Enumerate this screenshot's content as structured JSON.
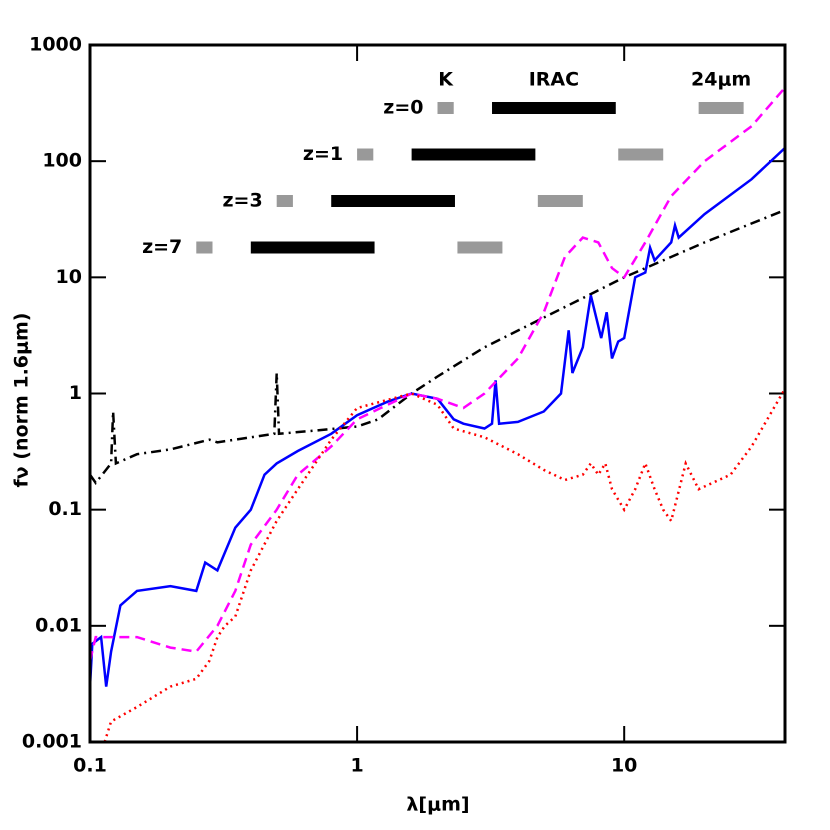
{
  "chart_data": {
    "type": "line",
    "xlabel": "λ[μm]",
    "ylabel": "fν (norm 1.6μm)",
    "xscale": "log",
    "yscale": "log",
    "xlim": [
      0.1,
      40
    ],
    "ylim": [
      0.001,
      1000
    ],
    "xticks": [
      0.1,
      1,
      10
    ],
    "yticks": [
      0.001,
      0.01,
      0.1,
      1,
      10,
      100,
      1000
    ],
    "series": [
      {
        "color": "#000000",
        "linestyle": "dashdot",
        "x": [
          0.1,
          0.105,
          0.12,
          0.122,
          0.125,
          0.15,
          0.2,
          0.28,
          0.3,
          0.4,
          0.49,
          0.5,
          0.51,
          0.7,
          1,
          1.2,
          1.6,
          2,
          3,
          5,
          10,
          20,
          40
        ],
        "values": [
          0.2,
          0.17,
          0.25,
          0.7,
          0.25,
          0.3,
          0.33,
          0.4,
          0.38,
          0.42,
          0.45,
          1.5,
          0.45,
          0.48,
          0.52,
          0.6,
          1.0,
          1.4,
          2.5,
          4.5,
          10,
          20,
          38
        ]
      },
      {
        "color": "#0000ff",
        "linestyle": "solid",
        "x": [
          0.1,
          0.102,
          0.11,
          0.115,
          0.12,
          0.13,
          0.15,
          0.2,
          0.25,
          0.27,
          0.3,
          0.35,
          0.4,
          0.45,
          0.5,
          0.6,
          0.8,
          1,
          1.3,
          1.6,
          2,
          2.3,
          2.5,
          3,
          3.2,
          3.3,
          3.4,
          4,
          5,
          5.8,
          6.2,
          6.4,
          7,
          7.5,
          8.2,
          8.6,
          9,
          9.5,
          10,
          11,
          12,
          12.5,
          13,
          15,
          15.5,
          16,
          20,
          30,
          40
        ],
        "values": [
          0.003,
          0.007,
          0.008,
          0.003,
          0.006,
          0.015,
          0.02,
          0.022,
          0.02,
          0.035,
          0.03,
          0.07,
          0.1,
          0.2,
          0.25,
          0.32,
          0.45,
          0.65,
          0.85,
          1.0,
          0.9,
          0.6,
          0.55,
          0.5,
          0.55,
          1.3,
          0.55,
          0.57,
          0.7,
          1.0,
          3.5,
          1.5,
          2.5,
          7,
          3,
          5,
          2,
          2.8,
          3,
          10,
          11,
          18,
          14,
          20,
          28,
          22,
          35,
          70,
          130
        ]
      },
      {
        "color": "#ff00ff",
        "linestyle": "dashed",
        "x": [
          0.1,
          0.105,
          0.12,
          0.15,
          0.2,
          0.25,
          0.3,
          0.35,
          0.4,
          0.5,
          0.6,
          0.8,
          1,
          1.3,
          1.6,
          2,
          2.5,
          3,
          4,
          5,
          6,
          7,
          8,
          9,
          10,
          12,
          15,
          20,
          30,
          40
        ],
        "values": [
          0.005,
          0.008,
          0.008,
          0.008,
          0.0065,
          0.006,
          0.01,
          0.02,
          0.05,
          0.1,
          0.2,
          0.35,
          0.6,
          0.8,
          1.0,
          0.9,
          0.75,
          1,
          2,
          5,
          15,
          22,
          20,
          12,
          10,
          20,
          50,
          100,
          200,
          430
        ]
      },
      {
        "color": "#ff0000",
        "linestyle": "dotted",
        "x": [
          0.11,
          0.12,
          0.15,
          0.2,
          0.25,
          0.28,
          0.3,
          0.32,
          0.35,
          0.4,
          0.5,
          0.6,
          0.8,
          1,
          1.3,
          1.6,
          2,
          2.3,
          3,
          4,
          5,
          6,
          7,
          7.5,
          8,
          8.5,
          9,
          10,
          11,
          12,
          13,
          14,
          15,
          17,
          19,
          25,
          30,
          40
        ],
        "values": [
          0.0008,
          0.0015,
          0.002,
          0.003,
          0.0035,
          0.005,
          0.008,
          0.01,
          0.012,
          0.03,
          0.08,
          0.15,
          0.4,
          0.75,
          0.88,
          1.0,
          0.8,
          0.5,
          0.42,
          0.3,
          0.22,
          0.18,
          0.2,
          0.25,
          0.2,
          0.25,
          0.15,
          0.1,
          0.15,
          0.25,
          0.15,
          0.1,
          0.08,
          0.25,
          0.15,
          0.2,
          0.35,
          1.1
        ]
      }
    ],
    "bands": [
      {
        "label": "K",
        "color": "#999999",
        "range": [
          2.0,
          2.3
        ]
      },
      {
        "label": "IRAC",
        "color": "#000000",
        "range": [
          3.2,
          9.3
        ]
      },
      {
        "label": "24μm",
        "color": "#999999",
        "range": [
          19,
          28
        ]
      }
    ],
    "rows": [
      {
        "label": "z=0",
        "z": 0
      },
      {
        "label": "z=1",
        "z": 1
      },
      {
        "label": "z=3",
        "z": 3
      },
      {
        "label": "z=7",
        "z": 7
      }
    ]
  }
}
